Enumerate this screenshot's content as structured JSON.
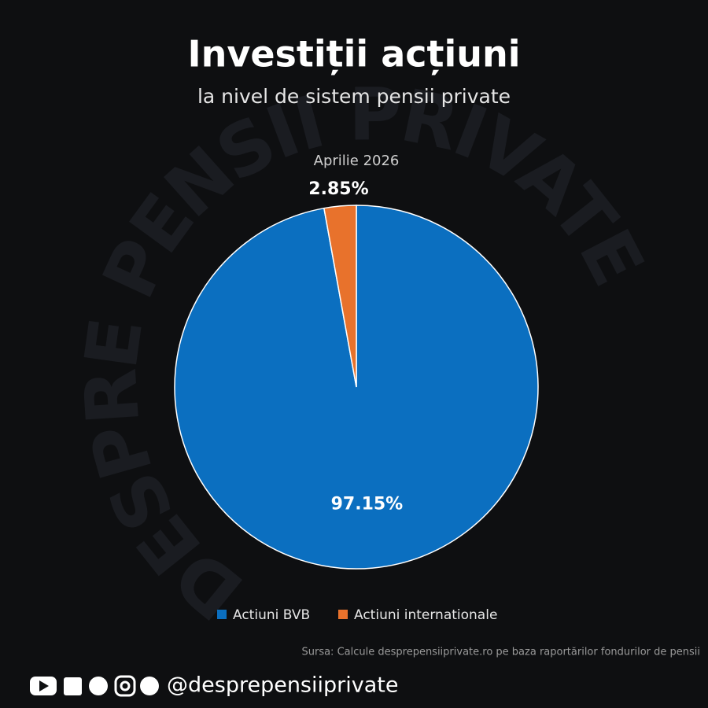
{
  "chart_data": {
    "type": "pie",
    "title": "Investiții acțiuni",
    "subtitle": "la nivel de sistem pensii private",
    "annotation": "Aprilie 2026",
    "categories": [
      "Actiuni BVB",
      "Actiuni internationale"
    ],
    "values": [
      97.15,
      2.85
    ],
    "value_labels": [
      "97.15%",
      "2.85%"
    ],
    "colors": [
      "#0b6fc0",
      "#e8722c"
    ]
  },
  "watermark": "DESPRE PENSII PRIVATE",
  "footer": {
    "source": "Sursa: Calcule desprepensiiprivate.ro pe baza raportărilor fondurilor de pensii",
    "handle": "@desprepensiiprivate"
  }
}
